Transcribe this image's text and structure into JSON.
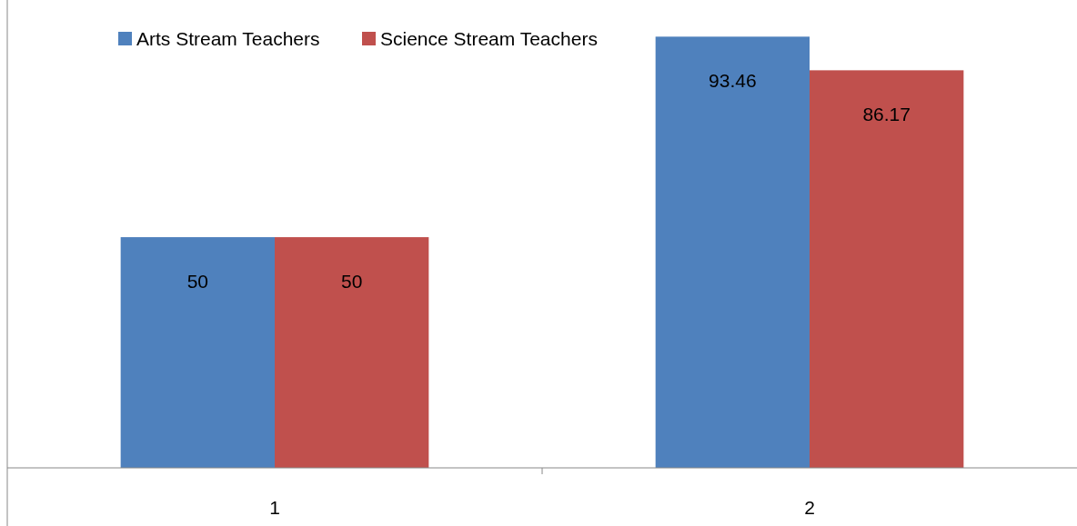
{
  "chart_data": {
    "type": "bar",
    "categories": [
      "1",
      "2"
    ],
    "series": [
      {
        "name": "Arts Stream Teachers",
        "color": "#4f81bd",
        "values": [
          50,
          93.46
        ]
      },
      {
        "name": "Science Stream Teachers",
        "color": "#c0504d",
        "values": [
          50,
          86.17
        ]
      }
    ],
    "data_labels": true,
    "legend": "top left",
    "grid": false
  }
}
